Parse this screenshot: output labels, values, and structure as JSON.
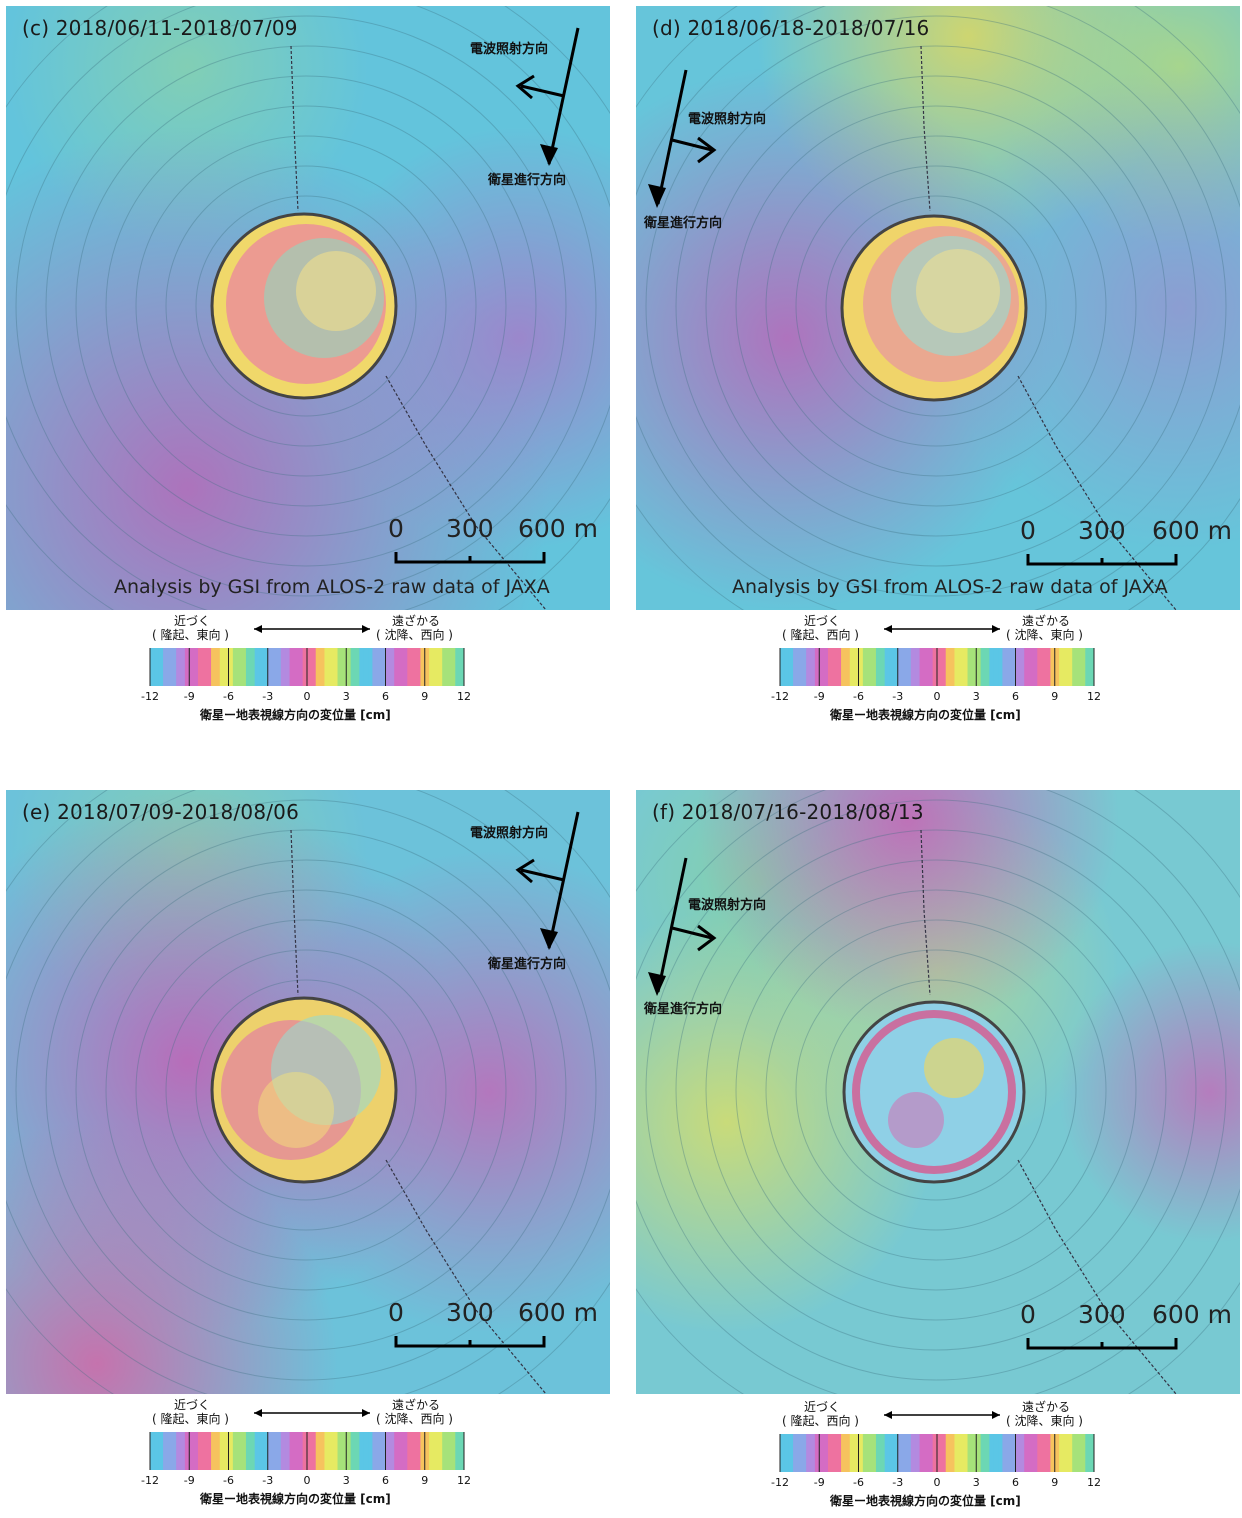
{
  "panels": [
    {
      "title": "(c) 2018/06/11-2018/07/09",
      "radar_label": "電波照射方向",
      "orbit_label": "衛星進行方向",
      "scale": [
        "0",
        "300",
        "600 m"
      ],
      "credit": "Analysis by GSI from ALOS-2 raw data of JAXA"
    },
    {
      "title": "(d) 2018/06/18-2018/07/16",
      "radar_label": "電波照射方向",
      "orbit_label": "衛星進行方向",
      "scale": [
        "0",
        "300",
        "600 m"
      ],
      "credit": "Analysis by GSI from ALOS-2 raw data of JAXA"
    },
    {
      "title": "(e) 2018/07/09-2018/08/06",
      "radar_label": "電波照射方向",
      "orbit_label": "衛星進行方向",
      "scale": [
        "0",
        "300",
        "600 m"
      ],
      "credit": ""
    },
    {
      "title": "(f) 2018/07/16-2018/08/13",
      "radar_label": "電波照射方向",
      "orbit_label": "衛星進行方向",
      "scale": [
        "0",
        "300",
        "600 m"
      ],
      "credit": ""
    }
  ],
  "legends": [
    {
      "near": "近づく",
      "near_sub": "( 隆起、東向 )",
      "far": "遠ざかる",
      "far_sub": "( 沈降、西向 )",
      "ticks": [
        "-12",
        "-9",
        "-6",
        "-3",
        "0",
        "3",
        "6",
        "9",
        "12"
      ],
      "caption": "衛星ー地表視線方向の変位量 [cm]"
    },
    {
      "near": "近づく",
      "near_sub": "( 隆起、西向 )",
      "far": "遠ざかる",
      "far_sub": "( 沈降、東向 )",
      "ticks": [
        "-12",
        "-9",
        "-6",
        "-3",
        "0",
        "3",
        "6",
        "9",
        "12"
      ],
      "caption": "衛星ー地表視線方向の変位量 [cm]"
    },
    {
      "near": "近づく",
      "near_sub": "( 隆起、東向 )",
      "far": "遠ざかる",
      "far_sub": "( 沈降、西向 )",
      "ticks": [
        "-12",
        "-9",
        "-6",
        "-3",
        "0",
        "3",
        "6",
        "9",
        "12"
      ],
      "caption": "衛星ー地表視線方向の変位量 [cm]"
    },
    {
      "near": "近づく",
      "near_sub": "( 隆起、西向 )",
      "far": "遠ざかる",
      "far_sub": "( 沈降、東向 )",
      "ticks": [
        "-12",
        "-9",
        "-6",
        "-3",
        "0",
        "3",
        "6",
        "9",
        "12"
      ],
      "caption": "衛星ー地表視線方向の変位量 [cm]"
    }
  ],
  "colors": {
    "cyan": "#62c6dc",
    "purple": "#b36ab4",
    "yellow": "#d9e06a",
    "green": "#8fd7a0"
  }
}
